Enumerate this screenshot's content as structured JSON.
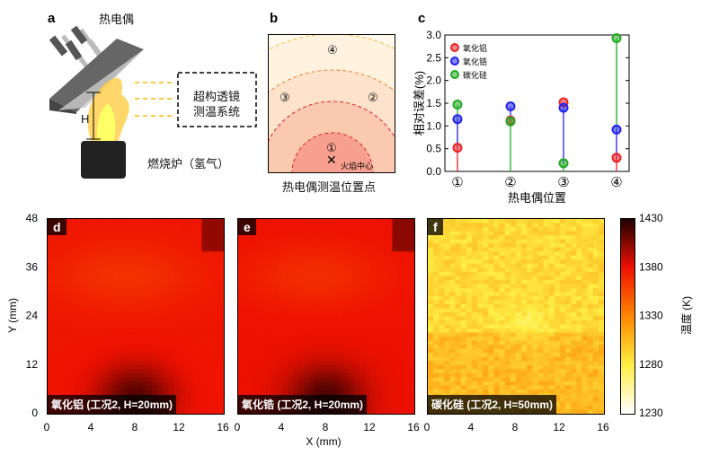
{
  "panels": {
    "a": {
      "label": "a",
      "thermocouple": "热电偶",
      "system": [
        "超构透镜",
        "测温系统"
      ],
      "height_label": "H",
      "burner": "燃烧炉（氢气）"
    },
    "b": {
      "label": "b",
      "positions": [
        "①",
        "②",
        "③",
        "④"
      ],
      "flame_center": "火焰中心",
      "caption": "热电偶测温位置点"
    },
    "c": {
      "label": "c"
    },
    "d": {
      "label": "d",
      "tag": "氧化铝 (工况2, H=20mm)"
    },
    "e": {
      "label": "e",
      "tag": "氧化锆 (工况2, H=20mm)"
    },
    "f": {
      "label": "f",
      "tag": "碳化硅 (工况2, H=50mm)"
    }
  },
  "chart_data": [
    {
      "type": "scatter",
      "panel": "c",
      "ylabel": "相对误差(%)",
      "xlabel": "热电偶位置",
      "categories": [
        "①",
        "②",
        "③",
        "④"
      ],
      "ylim": [
        0,
        3.0
      ],
      "yticks": [
        "0.0",
        "0.5",
        "1.0",
        "1.5",
        "2.0",
        "2.5",
        "3.0"
      ],
      "legend_position": "top-left",
      "series": [
        {
          "name": "氧化铝",
          "color": "#ee2222",
          "values": [
            0.52,
            1.12,
            1.52,
            0.3
          ]
        },
        {
          "name": "氧化锆",
          "color": "#2222ee",
          "values": [
            1.15,
            1.43,
            1.4,
            0.92
          ]
        },
        {
          "name": "碳化硅",
          "color": "#22aa22",
          "values": [
            1.47,
            1.1,
            0.18,
            2.93
          ]
        }
      ]
    },
    {
      "type": "heatmap",
      "panels": [
        "d",
        "e",
        "f"
      ],
      "xlabel": "X (mm)",
      "ylabel": "Y (mm)",
      "xticks": [
        "0",
        "4",
        "8",
        "12",
        "16"
      ],
      "yticks": [
        "0",
        "12",
        "24",
        "36",
        "48"
      ],
      "xlim": [
        0,
        16
      ],
      "ylim": [
        0,
        48
      ],
      "colorbar": {
        "label": "温度 (K)",
        "range": [
          1230,
          1430
        ],
        "ticks": [
          "1230",
          "1280",
          "1330",
          "1380",
          "1430"
        ],
        "colors": [
          "#ffffff",
          "#ffee44",
          "#ff8800",
          "#ee1100",
          "#220000"
        ]
      }
    }
  ]
}
